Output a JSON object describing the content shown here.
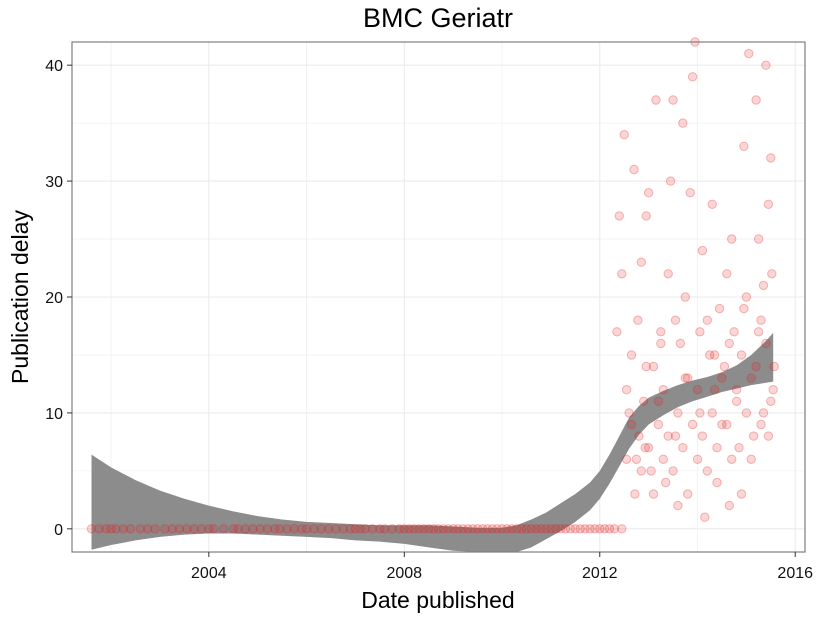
{
  "chart_data": {
    "type": "scatter",
    "title": "BMC Geriatr",
    "xlabel": "Date published",
    "ylabel": "Publication delay",
    "x_unit": "year",
    "xlim": [
      2001.2,
      2016.2
    ],
    "ylim": [
      -2,
      42
    ],
    "x_ticks": [
      2004,
      2008,
      2012,
      2016
    ],
    "y_ticks": [
      0,
      10,
      20,
      30,
      40
    ],
    "grid": true,
    "legend": "none",
    "colors": {
      "points": "#e41a1c",
      "band": "#8c8c8c",
      "grid": "#ebebeb",
      "panel_border": "#7f7f7f"
    },
    "band": [
      {
        "x": 2001.6,
        "lower": -1.8,
        "upper": 6.4
      },
      {
        "x": 2002.0,
        "lower": -1.4,
        "upper": 5.3
      },
      {
        "x": 2002.5,
        "lower": -1.0,
        "upper": 4.2
      },
      {
        "x": 2003.0,
        "lower": -0.7,
        "upper": 3.3
      },
      {
        "x": 2003.5,
        "lower": -0.5,
        "upper": 2.6
      },
      {
        "x": 2004.0,
        "lower": -0.4,
        "upper": 2.0
      },
      {
        "x": 2004.5,
        "lower": -0.4,
        "upper": 1.5
      },
      {
        "x": 2005.0,
        "lower": -0.5,
        "upper": 1.1
      },
      {
        "x": 2005.5,
        "lower": -0.6,
        "upper": 0.8
      },
      {
        "x": 2006.0,
        "lower": -0.7,
        "upper": 0.6
      },
      {
        "x": 2006.5,
        "lower": -0.8,
        "upper": 0.5
      },
      {
        "x": 2007.0,
        "lower": -1.0,
        "upper": 0.4
      },
      {
        "x": 2007.5,
        "lower": -1.1,
        "upper": 0.3
      },
      {
        "x": 2008.0,
        "lower": -1.3,
        "upper": 0.3
      },
      {
        "x": 2008.5,
        "lower": -1.6,
        "upper": 0.3
      },
      {
        "x": 2009.0,
        "lower": -1.9,
        "upper": 0.2
      },
      {
        "x": 2009.5,
        "lower": -2.0,
        "upper": 0.1
      },
      {
        "x": 2010.0,
        "lower": -2.0,
        "upper": 0.1
      },
      {
        "x": 2010.3,
        "lower": -2.0,
        "upper": 0.3
      },
      {
        "x": 2010.6,
        "lower": -1.6,
        "upper": 0.8
      },
      {
        "x": 2010.9,
        "lower": -0.9,
        "upper": 1.4
      },
      {
        "x": 2011.2,
        "lower": -0.2,
        "upper": 2.2
      },
      {
        "x": 2011.5,
        "lower": 0.6,
        "upper": 3.0
      },
      {
        "x": 2011.8,
        "lower": 1.6,
        "upper": 4.0
      },
      {
        "x": 2012.0,
        "lower": 2.6,
        "upper": 5.0
      },
      {
        "x": 2012.2,
        "lower": 3.9,
        "upper": 6.4
      },
      {
        "x": 2012.4,
        "lower": 5.4,
        "upper": 8.0
      },
      {
        "x": 2012.6,
        "lower": 6.9,
        "upper": 9.6
      },
      {
        "x": 2012.8,
        "lower": 8.1,
        "upper": 10.6
      },
      {
        "x": 2013.0,
        "lower": 9.0,
        "upper": 11.3
      },
      {
        "x": 2013.3,
        "lower": 9.8,
        "upper": 11.9
      },
      {
        "x": 2013.6,
        "lower": 10.5,
        "upper": 12.4
      },
      {
        "x": 2013.9,
        "lower": 11.0,
        "upper": 12.8
      },
      {
        "x": 2014.2,
        "lower": 11.4,
        "upper": 13.1
      },
      {
        "x": 2014.5,
        "lower": 11.8,
        "upper": 13.5
      },
      {
        "x": 2014.8,
        "lower": 12.1,
        "upper": 14.1
      },
      {
        "x": 2015.1,
        "lower": 12.4,
        "upper": 15.0
      },
      {
        "x": 2015.4,
        "lower": 12.6,
        "upper": 16.2
      },
      {
        "x": 2015.55,
        "lower": 12.7,
        "upper": 16.9
      }
    ],
    "points": [
      [
        2001.6,
        0
      ],
      [
        2001.75,
        0
      ],
      [
        2001.9,
        0
      ],
      [
        2002.0,
        0
      ],
      [
        2002.1,
        0
      ],
      [
        2002.25,
        0
      ],
      [
        2002.4,
        0
      ],
      [
        2002.6,
        0
      ],
      [
        2002.75,
        0
      ],
      [
        2002.9,
        0
      ],
      [
        2003.1,
        0
      ],
      [
        2003.25,
        0
      ],
      [
        2003.4,
        0
      ],
      [
        2003.55,
        0
      ],
      [
        2003.7,
        0
      ],
      [
        2003.85,
        0
      ],
      [
        2004.0,
        0
      ],
      [
        2004.1,
        0
      ],
      [
        2004.3,
        0
      ],
      [
        2004.5,
        0
      ],
      [
        2004.6,
        0
      ],
      [
        2004.75,
        0
      ],
      [
        2004.9,
        0
      ],
      [
        2005.05,
        0
      ],
      [
        2005.2,
        0
      ],
      [
        2005.35,
        0
      ],
      [
        2005.45,
        0
      ],
      [
        2005.6,
        0
      ],
      [
        2005.75,
        0
      ],
      [
        2005.9,
        0
      ],
      [
        2006.0,
        0
      ],
      [
        2006.15,
        0
      ],
      [
        2006.3,
        0
      ],
      [
        2006.45,
        0
      ],
      [
        2006.6,
        0
      ],
      [
        2006.75,
        0
      ],
      [
        2006.9,
        0
      ],
      [
        2007.0,
        0
      ],
      [
        2007.1,
        0
      ],
      [
        2007.2,
        0
      ],
      [
        2007.35,
        0
      ],
      [
        2007.5,
        0
      ],
      [
        2007.6,
        0
      ],
      [
        2007.75,
        0
      ],
      [
        2007.9,
        0
      ],
      [
        2008.0,
        0
      ],
      [
        2008.1,
        0
      ],
      [
        2008.2,
        0
      ],
      [
        2008.3,
        0
      ],
      [
        2008.4,
        0
      ],
      [
        2008.5,
        0
      ],
      [
        2008.6,
        0
      ],
      [
        2008.7,
        0
      ],
      [
        2008.8,
        0
      ],
      [
        2008.9,
        0
      ],
      [
        2009.0,
        0
      ],
      [
        2009.1,
        0
      ],
      [
        2009.2,
        0
      ],
      [
        2009.3,
        0
      ],
      [
        2009.4,
        0
      ],
      [
        2009.5,
        0
      ],
      [
        2009.6,
        0
      ],
      [
        2009.7,
        0
      ],
      [
        2009.8,
        0
      ],
      [
        2009.9,
        0
      ],
      [
        2010.0,
        0
      ],
      [
        2010.1,
        0
      ],
      [
        2010.2,
        0
      ],
      [
        2010.3,
        0
      ],
      [
        2010.4,
        0
      ],
      [
        2010.5,
        0
      ],
      [
        2010.6,
        0
      ],
      [
        2010.7,
        0
      ],
      [
        2010.8,
        0
      ],
      [
        2010.9,
        0
      ],
      [
        2011.0,
        0
      ],
      [
        2011.1,
        0
      ],
      [
        2011.2,
        0
      ],
      [
        2011.3,
        0
      ],
      [
        2011.4,
        0
      ],
      [
        2011.5,
        0
      ],
      [
        2011.6,
        0
      ],
      [
        2011.7,
        0
      ],
      [
        2011.8,
        0
      ],
      [
        2011.9,
        0
      ],
      [
        2012.0,
        0
      ],
      [
        2012.1,
        0
      ],
      [
        2012.2,
        0
      ],
      [
        2012.3,
        0
      ],
      [
        2012.45,
        0
      ],
      [
        2012.35,
        17
      ],
      [
        2012.4,
        27
      ],
      [
        2012.45,
        22
      ],
      [
        2012.5,
        34
      ],
      [
        2012.55,
        12
      ],
      [
        2012.6,
        10
      ],
      [
        2012.65,
        15
      ],
      [
        2012.7,
        31
      ],
      [
        2012.72,
        3
      ],
      [
        2012.75,
        6
      ],
      [
        2012.78,
        18
      ],
      [
        2012.8,
        8
      ],
      [
        2012.85,
        23
      ],
      [
        2012.9,
        11
      ],
      [
        2012.93,
        7
      ],
      [
        2012.95,
        27
      ],
      [
        2013.0,
        29
      ],
      [
        2013.05,
        5
      ],
      [
        2013.1,
        14
      ],
      [
        2013.15,
        37
      ],
      [
        2013.2,
        9
      ],
      [
        2013.25,
        17
      ],
      [
        2013.3,
        12
      ],
      [
        2013.35,
        4
      ],
      [
        2013.4,
        22
      ],
      [
        2013.45,
        30
      ],
      [
        2013.5,
        37
      ],
      [
        2013.55,
        8
      ],
      [
        2013.6,
        2
      ],
      [
        2013.65,
        16
      ],
      [
        2013.7,
        35
      ],
      [
        2013.75,
        20
      ],
      [
        2013.8,
        13
      ],
      [
        2013.85,
        29
      ],
      [
        2013.9,
        39
      ],
      [
        2013.95,
        42
      ],
      [
        2014.0,
        6
      ],
      [
        2014.05,
        10
      ],
      [
        2014.1,
        24
      ],
      [
        2014.15,
        1
      ],
      [
        2014.2,
        18
      ],
      [
        2014.25,
        15
      ],
      [
        2014.3,
        28
      ],
      [
        2014.35,
        12
      ],
      [
        2014.4,
        4
      ],
      [
        2014.45,
        19
      ],
      [
        2014.5,
        9
      ],
      [
        2014.55,
        14
      ],
      [
        2014.6,
        22
      ],
      [
        2014.65,
        2
      ],
      [
        2014.7,
        25
      ],
      [
        2014.75,
        17
      ],
      [
        2014.8,
        11
      ],
      [
        2014.85,
        7
      ],
      [
        2014.9,
        15
      ],
      [
        2014.95,
        33
      ],
      [
        2015.0,
        20
      ],
      [
        2015.05,
        41
      ],
      [
        2015.1,
        13
      ],
      [
        2015.15,
        8
      ],
      [
        2015.2,
        37
      ],
      [
        2015.25,
        25
      ],
      [
        2015.3,
        18
      ],
      [
        2015.35,
        10
      ],
      [
        2015.4,
        40
      ],
      [
        2015.45,
        28
      ],
      [
        2015.5,
        32
      ],
      [
        2015.52,
        22
      ],
      [
        2015.55,
        12
      ],
      [
        2015.57,
        14
      ],
      [
        2012.55,
        6
      ],
      [
        2012.65,
        9
      ],
      [
        2012.85,
        5
      ],
      [
        2013.0,
        7
      ],
      [
        2013.1,
        3
      ],
      [
        2013.2,
        11
      ],
      [
        2013.3,
        6
      ],
      [
        2013.4,
        8
      ],
      [
        2013.5,
        5
      ],
      [
        2013.6,
        10
      ],
      [
        2013.7,
        7
      ],
      [
        2013.8,
        3
      ],
      [
        2013.9,
        9
      ],
      [
        2014.0,
        12
      ],
      [
        2014.1,
        8
      ],
      [
        2014.2,
        5
      ],
      [
        2014.3,
        10
      ],
      [
        2014.4,
        7
      ],
      [
        2014.5,
        13
      ],
      [
        2014.6,
        9
      ],
      [
        2014.7,
        6
      ],
      [
        2014.8,
        12
      ],
      [
        2014.9,
        3
      ],
      [
        2015.0,
        10
      ],
      [
        2015.1,
        6
      ],
      [
        2015.2,
        14
      ],
      [
        2015.3,
        9
      ],
      [
        2015.4,
        16
      ],
      [
        2015.5,
        11
      ],
      [
        2015.45,
        8
      ],
      [
        2012.95,
        14
      ],
      [
        2013.25,
        16
      ],
      [
        2013.55,
        18
      ],
      [
        2013.75,
        13
      ],
      [
        2014.05,
        17
      ],
      [
        2014.35,
        15
      ],
      [
        2014.65,
        16
      ],
      [
        2014.95,
        19
      ],
      [
        2015.25,
        17
      ],
      [
        2015.35,
        21
      ]
    ]
  }
}
